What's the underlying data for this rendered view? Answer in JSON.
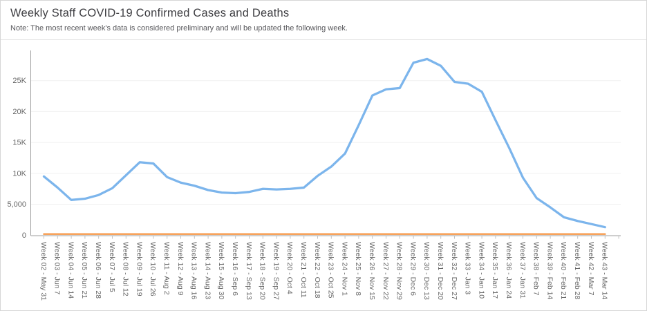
{
  "header": {
    "title": "Weekly Staff COVID-19 Confirmed Cases and Deaths",
    "note": "Note: The most recent week's data is considered preliminary and will be updated the following week."
  },
  "chart_data": {
    "type": "line",
    "title": "Weekly Staff COVID-19 Confirmed Cases and Deaths",
    "xlabel": "",
    "ylabel": "",
    "ylim": [
      0,
      30000
    ],
    "grid": true,
    "legend": "none",
    "x_tick_rotation_deg": 90,
    "yticks": [
      {
        "label": "0",
        "value": 0
      },
      {
        "label": "5,000",
        "value": 5000
      },
      {
        "label": "10K",
        "value": 10000
      },
      {
        "label": "15K",
        "value": 15000
      },
      {
        "label": "20K",
        "value": 20000
      },
      {
        "label": "25K",
        "value": 25000
      }
    ],
    "categories": [
      "Week 02 - May 31",
      "Week 03 - Jun 7",
      "Week 04 - Jun 14",
      "Week 05 - Jun 21",
      "Week 06 - Jun 28",
      "Week 07 - Jul 5",
      "Week 08 - Jul 12",
      "Week 09 - Jul 19",
      "Week 10 - Jul 26",
      "Week 11 - Aug 2",
      "Week 12 - Aug 9",
      "Week 13 - Aug 16",
      "Week 14 - Aug 23",
      "Week 15 - Aug 30",
      "Week 16 - Sep 6",
      "Week 17 - Sep 13",
      "Week 18 - Sep 20",
      "Week 19 - Sep 27",
      "Week 20 - Oct 4",
      "Week 21 - Oct 11",
      "Week 22 - Oct 18",
      "Week 23 - Oct 25",
      "Week 24 - Nov 1",
      "Week 25 - Nov 8",
      "Week 26 - Nov 15",
      "Week 27 - Nov 22",
      "Week 28 - Nov 29",
      "Week 29 - Dec 6",
      "Week 30 - Dec 13",
      "Week 31 - Dec 20",
      "Week 32 - Dec 27",
      "Week 33 - Jan 3",
      "Week 34 - Jan 10",
      "Week 35 - Jan 17",
      "Week 36 - Jan 24",
      "Week 37 - Jan 31",
      "Week 38 - Feb 7",
      "Week 39 - Feb 14",
      "Week 40 - Feb 21",
      "Week 41 - Feb 28",
      "Week 42 - Mar 7",
      "Week 43 - Mar 14"
    ],
    "series": [
      {
        "name": "Confirmed Cases",
        "color": "#7cb5ec",
        "values": [
          9500,
          7700,
          5700,
          5900,
          6500,
          7600,
          9700,
          11800,
          11600,
          9400,
          8500,
          8000,
          7300,
          6900,
          6800,
          7000,
          7500,
          7400,
          7500,
          7700,
          9600,
          11100,
          13200,
          17800,
          22600,
          23600,
          23800,
          27900,
          28500,
          27400,
          24800,
          24500,
          23200,
          18600,
          14100,
          9300,
          6000,
          4500,
          2900,
          2300,
          1800,
          1300
        ]
      },
      {
        "name": "Deaths",
        "color": "#f7a35c",
        "values": [
          0,
          0,
          0,
          0,
          0,
          0,
          0,
          0,
          0,
          0,
          0,
          0,
          0,
          0,
          0,
          0,
          0,
          0,
          0,
          0,
          0,
          0,
          0,
          0,
          0,
          0,
          0,
          0,
          0,
          0,
          0,
          0,
          0,
          0,
          0,
          0,
          0,
          0,
          0,
          0,
          0,
          0
        ]
      }
    ],
    "colors": {
      "grid": "#f0f0f0",
      "axis": "#9e9e9e",
      "tick": "#c2c2c2",
      "label": "#666666"
    }
  }
}
